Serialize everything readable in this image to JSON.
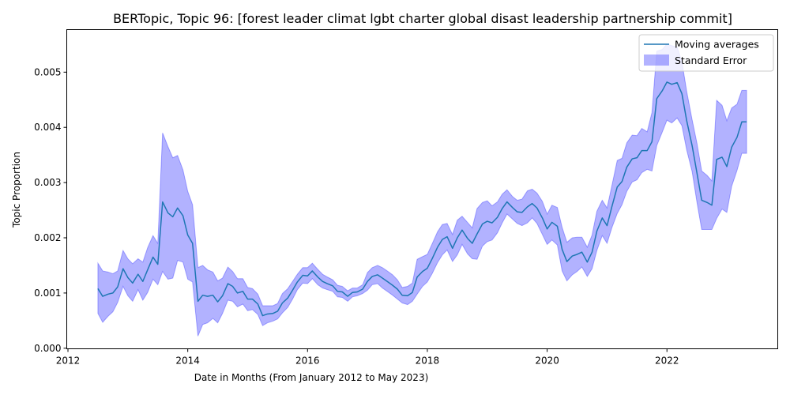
{
  "chart_data": {
    "type": "line",
    "title": "BERTopic, Topic 96: [forest leader climat lgbt charter global disast leadership partnership commit]",
    "xlabel": "Date in Months (From January 2012 to May 2023)",
    "ylabel": "Topic Proportion",
    "xlim": [
      2011.98,
      2023.85
    ],
    "ylim": [
      -1e-05,
      0.00577
    ],
    "x_ticks": [
      2012,
      2014,
      2016,
      2018,
      2020,
      2022
    ],
    "x_tick_labels": [
      "2012",
      "2014",
      "2016",
      "2018",
      "2020",
      "2022"
    ],
    "y_ticks": [
      0.0,
      0.001,
      0.002,
      0.003,
      0.004,
      0.005
    ],
    "y_tick_labels": [
      "0.000",
      "0.001",
      "0.002",
      "0.003",
      "0.004",
      "0.005"
    ],
    "grid": false,
    "legend_position": "top-right",
    "series": [
      {
        "name": "Moving averages",
        "color": "#1f77b4",
        "x": [
          2012.5,
          2012.58,
          2012.67,
          2012.75,
          2012.83,
          2012.92,
          2013.0,
          2013.08,
          2013.17,
          2013.25,
          2013.33,
          2013.42,
          2013.5,
          2013.58,
          2013.67,
          2013.75,
          2013.83,
          2013.92,
          2014.0,
          2014.08,
          2014.17,
          2014.25,
          2014.33,
          2014.42,
          2014.5,
          2014.58,
          2014.67,
          2014.75,
          2014.83,
          2014.92,
          2015.0,
          2015.08,
          2015.17,
          2015.25,
          2015.33,
          2015.42,
          2015.5,
          2015.58,
          2015.67,
          2015.75,
          2015.83,
          2015.92,
          2016.0,
          2016.08,
          2016.17,
          2016.25,
          2016.33,
          2016.42,
          2016.5,
          2016.58,
          2016.67,
          2016.75,
          2016.83,
          2016.92,
          2017.0,
          2017.08,
          2017.17,
          2017.25,
          2017.33,
          2017.42,
          2017.5,
          2017.58,
          2017.67,
          2017.75,
          2017.83,
          2017.92,
          2018.0,
          2018.08,
          2018.17,
          2018.25,
          2018.33,
          2018.42,
          2018.5,
          2018.58,
          2018.67,
          2018.75,
          2018.83,
          2018.92,
          2019.0,
          2019.08,
          2019.17,
          2019.25,
          2019.33,
          2019.42,
          2019.5,
          2019.58,
          2019.67,
          2019.75,
          2019.83,
          2019.92,
          2020.0,
          2020.08,
          2020.17,
          2020.25,
          2020.33,
          2020.42,
          2020.5,
          2020.58,
          2020.67,
          2020.75,
          2020.83,
          2020.92,
          2021.0,
          2021.08,
          2021.17,
          2021.25,
          2021.33,
          2021.42,
          2021.5,
          2021.58,
          2021.67,
          2021.75,
          2021.83,
          2021.92,
          2022.0,
          2022.08,
          2022.17,
          2022.25,
          2022.33,
          2022.42,
          2022.5,
          2022.58,
          2022.67,
          2022.75,
          2022.83,
          2022.92,
          2023.0,
          2023.08,
          2023.17,
          2023.25,
          2023.33
        ],
        "values": [
          0.00108,
          0.00094,
          0.00098,
          0.001,
          0.00111,
          0.00144,
          0.00128,
          0.00118,
          0.00134,
          0.00121,
          0.00142,
          0.00165,
          0.00152,
          0.00265,
          0.00245,
          0.00238,
          0.00254,
          0.0024,
          0.00205,
          0.0019,
          0.00085,
          0.00096,
          0.00094,
          0.00096,
          0.00084,
          0.00095,
          0.00117,
          0.00112,
          0.001,
          0.00103,
          0.00089,
          0.00089,
          0.0008,
          0.00059,
          0.00062,
          0.00063,
          0.00067,
          0.00082,
          0.00091,
          0.00105,
          0.0012,
          0.00132,
          0.00131,
          0.0014,
          0.00129,
          0.00121,
          0.00117,
          0.00113,
          0.00103,
          0.00102,
          0.00094,
          0.00101,
          0.00102,
          0.00107,
          0.00121,
          0.0013,
          0.00133,
          0.00127,
          0.00121,
          0.00114,
          0.00107,
          0.00096,
          0.00095,
          0.00101,
          0.00129,
          0.00139,
          0.00145,
          0.00162,
          0.00183,
          0.00197,
          0.00202,
          0.00181,
          0.002,
          0.00214,
          0.00199,
          0.0019,
          0.00207,
          0.00225,
          0.0023,
          0.00227,
          0.00237,
          0.00253,
          0.00265,
          0.00255,
          0.00247,
          0.00246,
          0.00256,
          0.00262,
          0.00254,
          0.00236,
          0.00216,
          0.00228,
          0.00221,
          0.00179,
          0.00157,
          0.00167,
          0.0017,
          0.00174,
          0.00156,
          0.00174,
          0.00212,
          0.00236,
          0.00222,
          0.00256,
          0.00292,
          0.00302,
          0.00328,
          0.00343,
          0.00345,
          0.00358,
          0.00358,
          0.00374,
          0.00452,
          0.00466,
          0.00482,
          0.00478,
          0.00481,
          0.00461,
          0.00412,
          0.00367,
          0.00318,
          0.00268,
          0.00264,
          0.00259,
          0.00342,
          0.00346,
          0.00329,
          0.00364,
          0.00382,
          0.0041,
          0.0041
        ]
      },
      {
        "name": "Standard Error",
        "color": "#0000ff",
        "opacity": 0.3,
        "x": [
          2012.5,
          2012.58,
          2012.67,
          2012.75,
          2012.83,
          2012.92,
          2013.0,
          2013.08,
          2013.17,
          2013.25,
          2013.33,
          2013.42,
          2013.5,
          2013.58,
          2013.67,
          2013.75,
          2013.83,
          2013.92,
          2014.0,
          2014.08,
          2014.17,
          2014.25,
          2014.33,
          2014.42,
          2014.5,
          2014.58,
          2014.67,
          2014.75,
          2014.83,
          2014.92,
          2015.0,
          2015.08,
          2015.17,
          2015.25,
          2015.33,
          2015.42,
          2015.5,
          2015.58,
          2015.67,
          2015.75,
          2015.83,
          2015.92,
          2016.0,
          2016.08,
          2016.17,
          2016.25,
          2016.33,
          2016.42,
          2016.5,
          2016.58,
          2016.67,
          2016.75,
          2016.83,
          2016.92,
          2017.0,
          2017.08,
          2017.17,
          2017.25,
          2017.33,
          2017.42,
          2017.5,
          2017.58,
          2017.67,
          2017.75,
          2017.83,
          2017.92,
          2018.0,
          2018.08,
          2018.17,
          2018.25,
          2018.33,
          2018.42,
          2018.5,
          2018.58,
          2018.67,
          2018.75,
          2018.83,
          2018.92,
          2019.0,
          2019.08,
          2019.17,
          2019.25,
          2019.33,
          2019.42,
          2019.5,
          2019.58,
          2019.67,
          2019.75,
          2019.83,
          2019.92,
          2020.0,
          2020.08,
          2020.17,
          2020.25,
          2020.33,
          2020.42,
          2020.5,
          2020.58,
          2020.67,
          2020.75,
          2020.83,
          2020.92,
          2021.0,
          2021.08,
          2021.17,
          2021.25,
          2021.33,
          2021.42,
          2021.5,
          2021.58,
          2021.67,
          2021.75,
          2021.83,
          2021.92,
          2022.0,
          2022.08,
          2022.17,
          2022.25,
          2022.33,
          2022.42,
          2022.5,
          2022.58,
          2022.67,
          2022.75,
          2022.83,
          2022.92,
          2023.0,
          2023.08,
          2023.17,
          2023.25,
          2023.33
        ],
        "upper": [
          0.00154,
          0.0014,
          0.00138,
          0.00135,
          0.0014,
          0.00177,
          0.00162,
          0.00153,
          0.00162,
          0.00156,
          0.00182,
          0.00204,
          0.0019,
          0.0039,
          0.00365,
          0.00345,
          0.00349,
          0.00323,
          0.00284,
          0.0026,
          0.00146,
          0.0015,
          0.00142,
          0.00138,
          0.00122,
          0.00127,
          0.00147,
          0.00139,
          0.00126,
          0.00126,
          0.0011,
          0.00108,
          0.00098,
          0.00077,
          0.00077,
          0.00077,
          0.00081,
          0.00099,
          0.00108,
          0.00121,
          0.00134,
          0.00146,
          0.00146,
          0.00154,
          0.00143,
          0.00134,
          0.00129,
          0.00124,
          0.00114,
          0.00112,
          0.00104,
          0.00109,
          0.00109,
          0.00115,
          0.00137,
          0.00146,
          0.0015,
          0.00146,
          0.0014,
          0.00133,
          0.00124,
          0.0011,
          0.00112,
          0.00118,
          0.00161,
          0.00166,
          0.0017,
          0.00189,
          0.00211,
          0.00224,
          0.00226,
          0.00206,
          0.00232,
          0.00239,
          0.00228,
          0.00218,
          0.00253,
          0.00264,
          0.00267,
          0.00258,
          0.00265,
          0.00279,
          0.00287,
          0.00275,
          0.00268,
          0.0027,
          0.00285,
          0.00288,
          0.00281,
          0.00266,
          0.00243,
          0.00259,
          0.00255,
          0.00219,
          0.00192,
          0.002,
          0.00201,
          0.00201,
          0.00183,
          0.00205,
          0.00248,
          0.00268,
          0.00254,
          0.00294,
          0.0034,
          0.00344,
          0.00372,
          0.00386,
          0.00385,
          0.00398,
          0.00392,
          0.00427,
          0.00538,
          0.00541,
          0.00551,
          0.00548,
          0.00545,
          0.00519,
          0.00465,
          0.00414,
          0.00372,
          0.00321,
          0.00313,
          0.00303,
          0.00449,
          0.0044,
          0.00412,
          0.00435,
          0.00442,
          0.00467,
          0.00467
        ],
        "lower": [
          0.00063,
          0.00047,
          0.00058,
          0.00066,
          0.00083,
          0.00112,
          0.00095,
          0.00085,
          0.00106,
          0.00087,
          0.00101,
          0.00125,
          0.00115,
          0.00139,
          0.00125,
          0.00127,
          0.00159,
          0.00156,
          0.00125,
          0.0012,
          0.00022,
          0.00043,
          0.00046,
          0.00054,
          0.00046,
          0.00063,
          0.00087,
          0.00085,
          0.00075,
          0.0008,
          0.00068,
          0.0007,
          0.00061,
          0.00041,
          0.00046,
          0.00049,
          0.00053,
          0.00064,
          0.00074,
          0.00089,
          0.00106,
          0.00118,
          0.00117,
          0.00126,
          0.00115,
          0.00109,
          0.00106,
          0.00103,
          0.00093,
          0.00092,
          0.00085,
          0.00093,
          0.00095,
          0.00099,
          0.00105,
          0.00115,
          0.00117,
          0.00109,
          0.00103,
          0.00096,
          0.00089,
          0.00082,
          0.00079,
          0.00085,
          0.00098,
          0.00112,
          0.0012,
          0.00135,
          0.00155,
          0.00169,
          0.00178,
          0.00157,
          0.00169,
          0.00188,
          0.00171,
          0.00162,
          0.00161,
          0.00185,
          0.00193,
          0.00196,
          0.00209,
          0.00227,
          0.00243,
          0.00234,
          0.00226,
          0.00222,
          0.00227,
          0.00236,
          0.00226,
          0.00206,
          0.00188,
          0.00196,
          0.00187,
          0.0014,
          0.00122,
          0.00133,
          0.00139,
          0.00147,
          0.0013,
          0.00144,
          0.00177,
          0.00204,
          0.0019,
          0.00218,
          0.00244,
          0.0026,
          0.00284,
          0.00301,
          0.00305,
          0.00318,
          0.00324,
          0.00321,
          0.00367,
          0.00391,
          0.00413,
          0.00408,
          0.00417,
          0.00403,
          0.00359,
          0.0032,
          0.00265,
          0.00215,
          0.00215,
          0.00215,
          0.00235,
          0.00252,
          0.00246,
          0.00293,
          0.00322,
          0.00353,
          0.00353
        ]
      }
    ]
  }
}
